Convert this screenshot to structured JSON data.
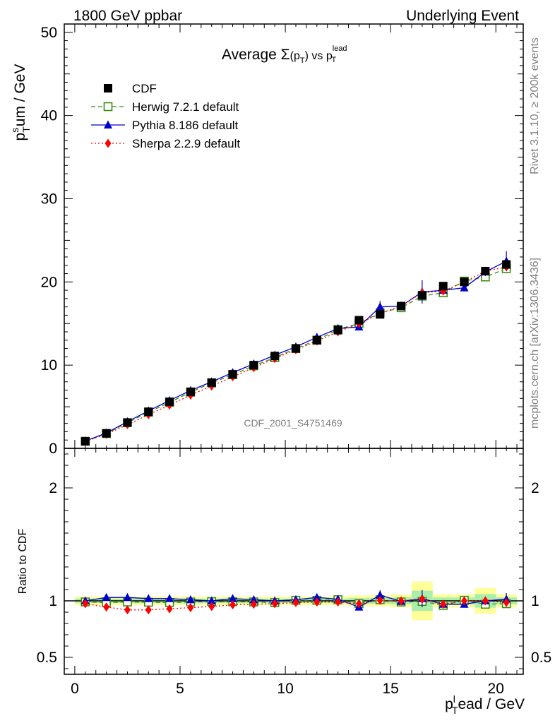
{
  "header": {
    "left": "1800 GeV ppbar",
    "right": "Underlying Event"
  },
  "plot": {
    "title_prefix": "Average ",
    "title_sigma": "Σ",
    "title_arg": "(p",
    "title_arg_sub": "T",
    "title_arg_close": ")",
    "title_vs": " vs p",
    "title_vs_sub": "T",
    "title_vs_sup": "lead",
    "ylabel_p": "p",
    "ylabel_sub": "T",
    "ylabel_sup": "s",
    "ylabel_rest": "um / GeV",
    "xlabel_p": "p",
    "xlabel_sub": "T",
    "xlabel_sup": "l",
    "xlabel_rest": "ead / GeV",
    "ratio_ylabel": "Ratio to CDF",
    "watermark": "CDF_2001_S4751469",
    "side_rivet": "Rivet 3.1.10, ≥ 200k events",
    "side_mcplots": "mcplots.cern.ch [arXiv:1306.3436]"
  },
  "chart_data": {
    "type": "line",
    "title": "Average Σ(pT) vs pT^lead",
    "xlabel": "pT^lead / GeV",
    "ylabel": "pT^sum / GeV",
    "xlim": [
      -0.5,
      21.3
    ],
    "ylim": [
      0,
      51
    ],
    "ratio_ylim": [
      0.35,
      2.35
    ],
    "x_ticks": [
      0,
      5,
      10,
      15,
      20
    ],
    "y_ticks": [
      0,
      10,
      20,
      30,
      40,
      50
    ],
    "ratio_ticks": [
      0.5,
      1,
      2
    ],
    "x": [
      0.5,
      1.5,
      2.5,
      3.5,
      4.5,
      5.5,
      6.5,
      7.5,
      8.5,
      9.5,
      10.5,
      11.5,
      12.5,
      13.5,
      14.5,
      15.5,
      16.5,
      17.5,
      18.5,
      19.5,
      20.5
    ],
    "legend_position": "top-left",
    "series": [
      {
        "name": "CDF",
        "color": "#000000",
        "marker": "square-filled",
        "values": [
          0.85,
          1.8,
          3.1,
          4.4,
          5.6,
          6.8,
          7.9,
          8.9,
          10.0,
          11.1,
          12.0,
          13.0,
          14.2,
          15.4,
          16.1,
          17.1,
          18.4,
          19.5,
          20.0,
          21.3,
          22.1
        ],
        "ratio_band": [
          0.02,
          0.02,
          0.02,
          0.02,
          0.02,
          0.02,
          0.02,
          0.02,
          0.02,
          0.02,
          0.02,
          0.02,
          0.02,
          0.025,
          0.025,
          0.03,
          0.09,
          0.03,
          0.03,
          0.06,
          0.03
        ]
      },
      {
        "name": "Herwig 7.2.1 default",
        "color": "#3a8c12",
        "marker": "square-open",
        "dash": "6,4",
        "values": [
          0.85,
          1.78,
          3.08,
          4.34,
          5.52,
          6.75,
          7.86,
          8.85,
          9.92,
          10.9,
          12.0,
          13.0,
          14.3,
          15.0,
          16.3,
          16.9,
          18.3,
          18.7,
          20.1,
          20.6,
          21.6
        ],
        "ratio": [
          0.99,
          0.985,
          0.99,
          0.988,
          0.985,
          0.99,
          0.993,
          0.992,
          0.99,
          0.985,
          1.005,
          1.005,
          1.01,
          0.975,
          1.01,
          0.99,
          0.995,
          0.96,
          1.005,
          0.97,
          0.975
        ]
      },
      {
        "name": "Pythia 8.186 default",
        "color": "#0000cc",
        "marker": "triangle-filled",
        "values": [
          0.88,
          1.85,
          3.2,
          4.5,
          5.75,
          6.95,
          8.0,
          9.1,
          10.15,
          11.2,
          12.2,
          13.35,
          14.4,
          14.6,
          17.0,
          17.1,
          18.8,
          19.0,
          19.3,
          21.2,
          22.5
        ],
        "ratio": [
          1.0,
          1.03,
          1.03,
          1.02,
          1.02,
          1.01,
          1.0,
          1.02,
          1.01,
          1.0,
          1.01,
          1.03,
          1.015,
          0.945,
          1.05,
          0.995,
          1.02,
          0.97,
          0.97,
          1.0,
          1.015
        ],
        "errors": [
          0.05,
          0.05,
          0.05,
          0.05,
          0.05,
          0.05,
          0.05,
          0.05,
          0.05,
          0.05,
          0.05,
          0.05,
          0.05,
          0.2,
          0.7,
          0.3,
          1.4,
          0.3,
          0.3,
          0.5,
          1.2
        ]
      },
      {
        "name": "Sherpa 2.2.9 default",
        "color": "#ff0000",
        "marker": "diamond-filled",
        "dash": "2,3",
        "values": [
          0.83,
          1.7,
          2.85,
          4.05,
          5.2,
          6.4,
          7.5,
          8.6,
          9.7,
          10.8,
          11.85,
          12.9,
          14.0,
          15.0,
          16.2,
          17.1,
          18.7,
          18.9,
          20.0,
          21.3,
          21.8
        ],
        "ratio": [
          0.975,
          0.945,
          0.92,
          0.92,
          0.93,
          0.94,
          0.95,
          0.965,
          0.97,
          0.975,
          0.985,
          0.99,
          0.99,
          0.975,
          1.005,
          1.0,
          1.015,
          0.97,
          1.0,
          1.0,
          0.985
        ]
      }
    ]
  }
}
